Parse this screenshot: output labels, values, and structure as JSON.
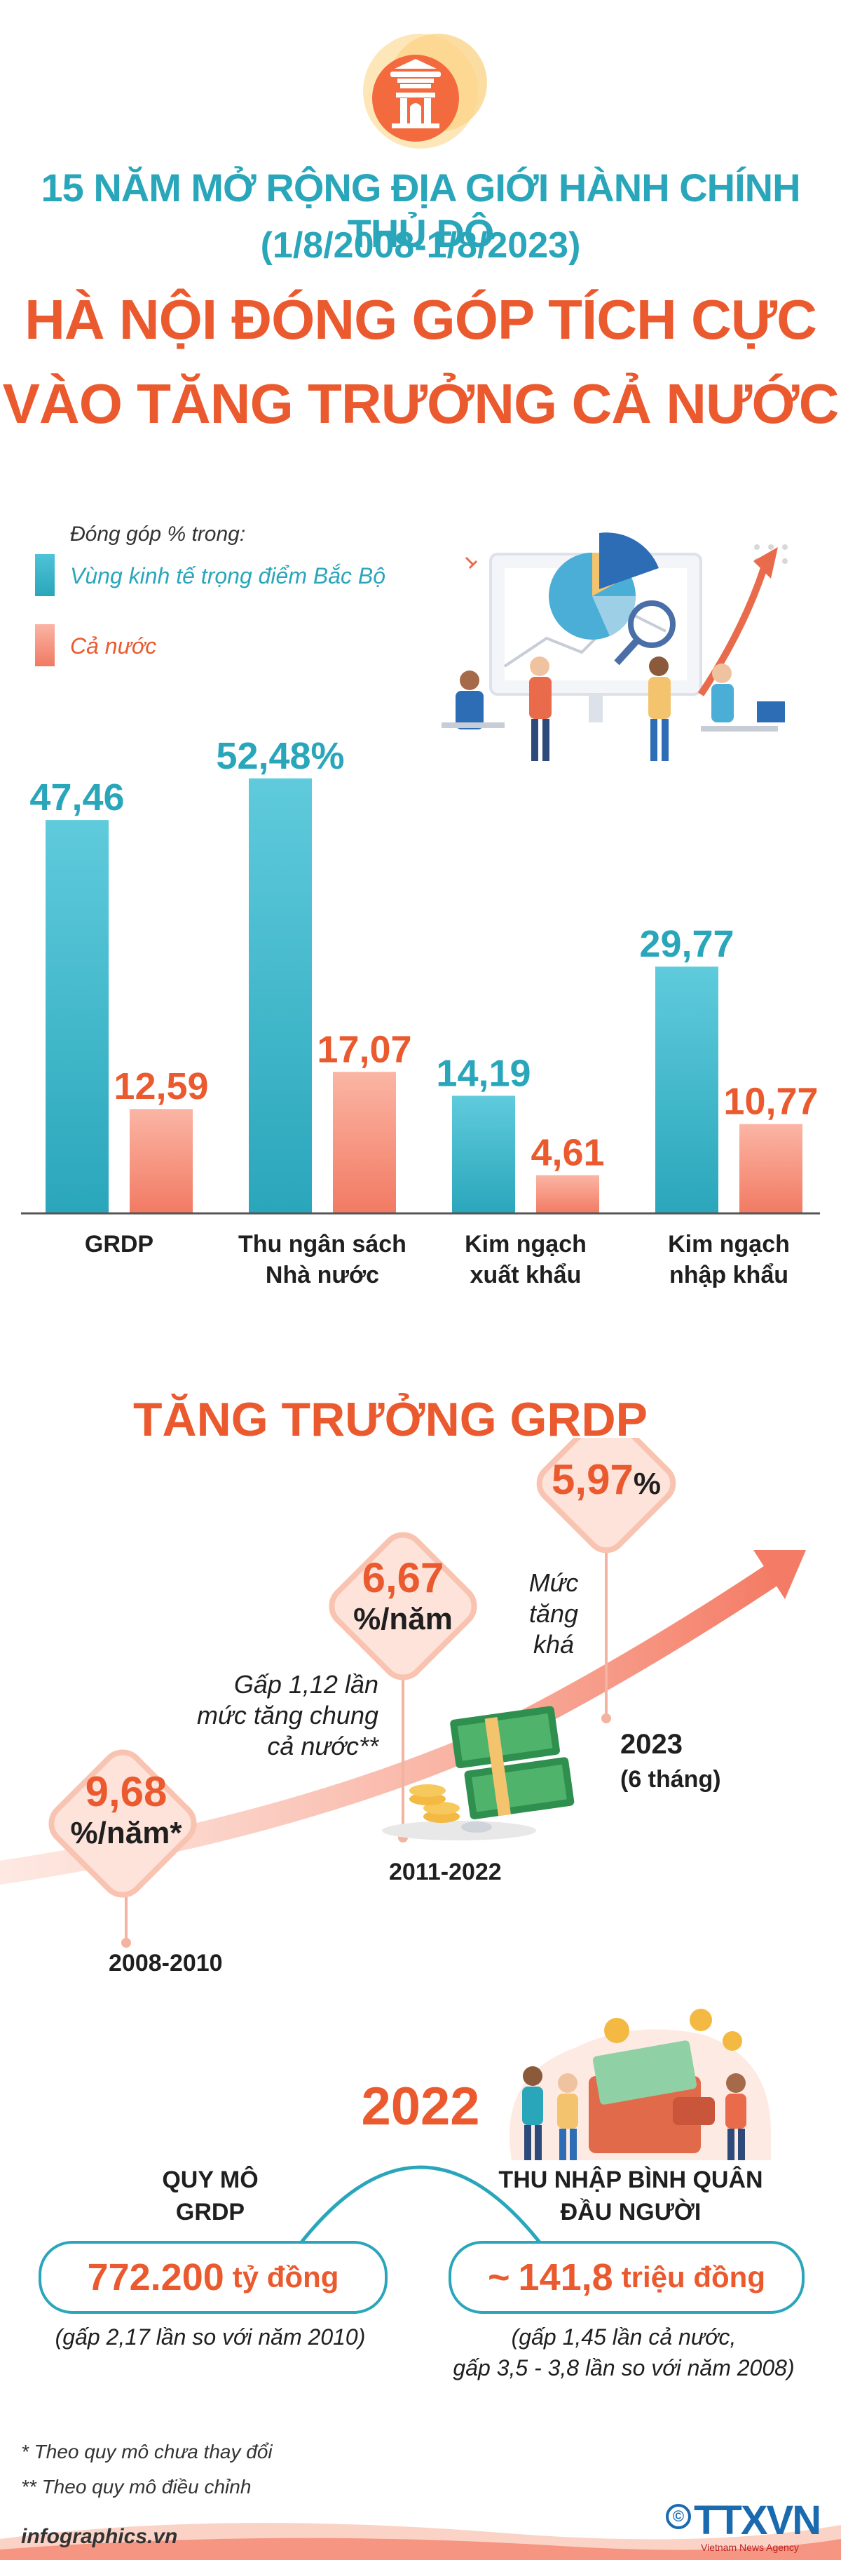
{
  "header": {
    "line1": "15 NĂM MỞ RỘNG ĐỊA GIỚI HÀNH CHÍNH THỦ ĐÔ",
    "line2": "(1/8/2008-1/8/2023)",
    "title1": "HÀ NỘI ĐÓNG GÓP TÍCH CỰC",
    "title2": "VÀO TĂNG TRƯỞNG CẢ NƯỚC",
    "logo_icon": "hanoi-gate-emblem-icon"
  },
  "legend": {
    "title": "Đóng góp % trong:",
    "series1": "Vùng kinh tế trọng điểm Bắc Bộ",
    "series2": "Cả nước"
  },
  "colors": {
    "teal": "#2aa6bb",
    "orange": "#ea5a2e",
    "salmon": "#f47b65"
  },
  "chart_data": {
    "type": "bar",
    "categories": [
      "GRDP",
      "Thu ngân sách Nhà nước",
      "Kim ngạch xuất khẩu",
      "Kim ngạch nhập khẩu"
    ],
    "category_lines": [
      [
        "GRDP"
      ],
      [
        "Thu ngân sách",
        "Nhà nước"
      ],
      [
        "Kim ngạch",
        "xuất khẩu"
      ],
      [
        "Kim ngạch",
        "nhập khẩu"
      ]
    ],
    "series": [
      {
        "name": "Vùng kinh tế trọng điểm Bắc Bộ",
        "values": [
          47.46,
          52.48,
          14.19,
          29.77
        ],
        "labels": [
          "47,46",
          "52,48%",
          "14,19",
          "29,77"
        ]
      },
      {
        "name": "Cả nước",
        "values": [
          12.59,
          17.07,
          4.61,
          10.77
        ],
        "labels": [
          "12,59",
          "17,07",
          "4,61",
          "10,77"
        ]
      }
    ],
    "ylim": [
      0,
      55
    ]
  },
  "growth": {
    "title": "TĂNG TRƯỞNG GRDP",
    "d1_value": "9,68",
    "d1_unit": "%/năm*",
    "d1_period": "2008-2010",
    "d2_value": "6,67",
    "d2_unit": "%/năm",
    "d2_period": "2011-2022",
    "d2_note_lines": [
      "Gấp 1,12 lần",
      "mức tăng chung",
      "cả nước**"
    ],
    "d3_value": "5,97",
    "d3_unit": "%",
    "d3_period": "2023",
    "d3_period_sub": "(6 tháng)",
    "d3_note_lines": [
      "Mức",
      "tăng",
      "khá"
    ]
  },
  "section2022": {
    "year": "2022",
    "left_label_lines": [
      "QUY MÔ",
      "GRDP"
    ],
    "left_value": "772.200",
    "left_unit": "tỷ đồng",
    "left_note": "(gấp 2,17 lần so với năm 2010)",
    "right_label_lines": [
      "THU NHẬP BÌNH QUÂN",
      "ĐẦU NGƯỜI"
    ],
    "right_prefix": "~",
    "right_value": "141,8",
    "right_unit": "triệu đồng",
    "right_note_lines": [
      "(gấp 1,45 lần cả nước,",
      "gấp 3,5 - 3,8 lần so với năm 2008)"
    ]
  },
  "footer": {
    "footnote1": "* Theo quy mô chưa thay đổi",
    "footnote2": "** Theo quy mô điều chỉnh",
    "site": "infographics.vn",
    "agency": "TTXVN",
    "agency_sub": "Vietnam News Agency",
    "copyright_symbol": "©"
  }
}
